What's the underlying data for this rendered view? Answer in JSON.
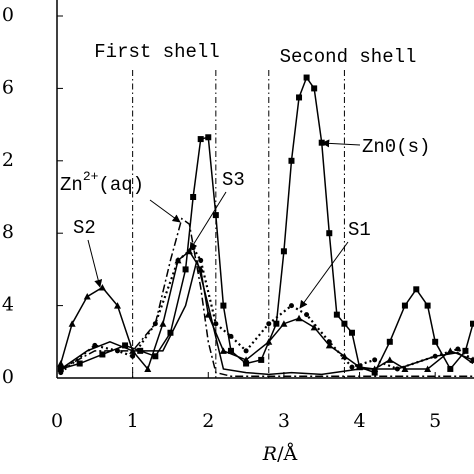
{
  "chart_data": {
    "type": "line",
    "xlim": [
      0,
      5.5
    ],
    "ylim": [
      0,
      20
    ],
    "xticks": [
      0,
      1,
      2,
      3,
      4,
      5
    ],
    "yticks": [
      0,
      4,
      8,
      {
        "value": 12,
        "label": "2"
      },
      {
        "value": 16,
        "label": "6"
      },
      {
        "value": 20,
        "label": "0"
      }
    ],
    "x_label": {
      "var": "R",
      "unit": "/Å"
    },
    "shell_lines": [
      1.0,
      2.1,
      2.8,
      3.8
    ],
    "shell_labels": [
      "First shell",
      "Second shell"
    ],
    "annotations": {
      "zn0": "Zn0(s)",
      "zn2_base": "Zn",
      "zn2_sup": "2+",
      "zn2_tail": "(aq)",
      "s3": "S3",
      "s2": "S2",
      "s1": "S1"
    },
    "series": [
      {
        "name": "Zn0(s)",
        "color": "#000000",
        "marker": "square",
        "dash": "solid",
        "x": [
          0.05,
          0.3,
          0.6,
          0.9,
          1.1,
          1.3,
          1.5,
          1.7,
          1.8,
          1.9,
          2.0,
          2.1,
          2.2,
          2.3,
          2.5,
          2.7,
          2.9,
          3.0,
          3.1,
          3.2,
          3.3,
          3.4,
          3.5,
          3.6,
          3.7,
          3.8,
          3.9,
          4.0,
          4.2,
          4.4,
          4.6,
          4.75,
          4.9,
          5.0,
          5.2,
          5.4,
          5.5
        ],
        "values": [
          0.5,
          0.8,
          1.3,
          1.8,
          1.5,
          1.2,
          2.5,
          6,
          10,
          13.2,
          13.3,
          9,
          4,
          1.5,
          0.8,
          1.0,
          3,
          7,
          12,
          15.5,
          16.6,
          16,
          13,
          8,
          3.5,
          3.0,
          2.5,
          0.6,
          0.3,
          2,
          4,
          4.9,
          4,
          2,
          0.5,
          1.5,
          3
        ]
      },
      {
        "name": "Zn2+(aq)",
        "color": "#000000",
        "marker": "none",
        "dash": "dashdot",
        "x": [
          0.05,
          0.5,
          1.0,
          1.3,
          1.5,
          1.65,
          1.75,
          1.9,
          2.0,
          2.1,
          2.3,
          3.0,
          4.0,
          5.0,
          5.5
        ],
        "values": [
          0.5,
          1.5,
          1.5,
          3,
          6.5,
          8.8,
          8.5,
          5,
          2,
          0.3,
          0.1,
          0.1,
          0.1,
          0.1,
          0.1
        ]
      },
      {
        "name": "S2",
        "color": "#000000",
        "marker": "triangle",
        "dash": "solid",
        "x": [
          0.05,
          0.2,
          0.4,
          0.6,
          0.8,
          1.0,
          1.2,
          1.4,
          1.6,
          1.75,
          1.9,
          2.0,
          2.2,
          2.5,
          2.8,
          3.0,
          3.2,
          3.4,
          3.6,
          3.8,
          4.0,
          4.2,
          4.4,
          4.6,
          4.9,
          5.2,
          5.5
        ],
        "values": [
          0.8,
          3,
          4.5,
          5,
          4,
          1.5,
          0.5,
          3,
          6.5,
          7.0,
          6,
          3.5,
          1.5,
          1.0,
          2,
          3,
          3.3,
          2.8,
          1.8,
          1.2,
          0.6,
          0.5,
          1,
          0.5,
          0.5,
          1.5,
          1
        ]
      },
      {
        "name": "S3",
        "color": "#000000",
        "marker": "circle",
        "dash": "dotted",
        "x": [
          0.05,
          0.5,
          0.8,
          1.0,
          1.3,
          1.6,
          1.8,
          1.9,
          2.1,
          2.3,
          2.5,
          2.8,
          3.1,
          3.3,
          3.6,
          3.9,
          4.2,
          4.5,
          5.0,
          5.3,
          5.5
        ],
        "values": [
          0.3,
          1.8,
          1.5,
          1.2,
          3,
          6.5,
          7.2,
          6.5,
          3,
          2.3,
          1.5,
          3,
          4.0,
          3.5,
          2,
          0.6,
          1,
          0.5,
          1.2,
          1.6,
          1
        ]
      },
      {
        "name": "S1",
        "color": "#000000",
        "marker": "none",
        "dash": "solid",
        "x": [
          0.05,
          0.4,
          0.7,
          1.0,
          1.4,
          1.7,
          1.85,
          2.0,
          2.2,
          2.5,
          2.8,
          3.1,
          3.5,
          4.0,
          4.5,
          5.0,
          5.3,
          5.5
        ],
        "values": [
          0.5,
          1.5,
          2,
          1.5,
          1.5,
          4,
          6.5,
          4,
          0.5,
          0.3,
          0.2,
          0.3,
          0.2,
          0.5,
          0.5,
          1.2,
          1.4,
          0.8
        ]
      }
    ]
  }
}
